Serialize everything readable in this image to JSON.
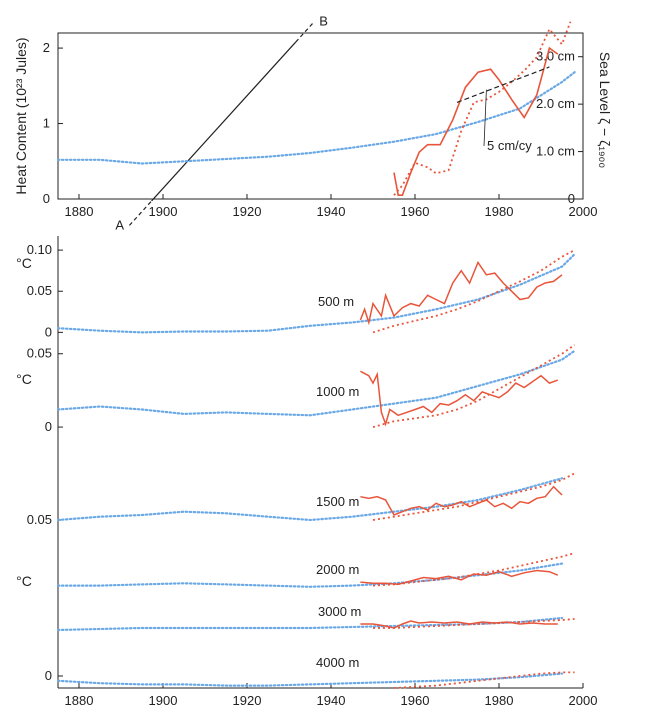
{
  "chart_data": {
    "type": "line",
    "colors": {
      "model": "#6aa8e6",
      "observed": "#e8553a",
      "axis": "#222222",
      "trend": "#222222"
    },
    "top_panel": {
      "xlim": [
        1875,
        2000
      ],
      "x_ticks": [
        "1880",
        "1900",
        "1920",
        "1940",
        "1960",
        "1980",
        "2000"
      ],
      "left_ylabel": "Heat Content (10²³ Jules)",
      "left_ylim": [
        0,
        2.2
      ],
      "left_ticks": [
        "0",
        "1",
        "2"
      ],
      "right_ylabel": "Sea Level ζ − ζ₁₉₀₀",
      "right_ylim": [
        0,
        3.5
      ],
      "right_ticks": [
        "0",
        "1.0 cm",
        "2.0 cm",
        "3.0 cm"
      ],
      "trend_line": {
        "points": [
          [
            1892,
            -0.35
          ],
          [
            1936,
            2.35
          ]
        ],
        "start_label": "A",
        "end_label": "B"
      },
      "annotation": "5 cm/cy",
      "series": [
        {
          "kind": "model_dotted",
          "x": [
            1875,
            1885,
            1895,
            1905,
            1915,
            1925,
            1935,
            1945,
            1955,
            1965,
            1975,
            1985,
            1995,
            1998
          ],
          "y": [
            0.52,
            0.52,
            0.47,
            0.5,
            0.53,
            0.56,
            0.61,
            0.68,
            0.76,
            0.86,
            1.02,
            1.2,
            1.55,
            1.68
          ]
        },
        {
          "kind": "observed_solid",
          "x": [
            1955,
            1956,
            1957,
            1959,
            1961,
            1963,
            1966,
            1969,
            1972,
            1975,
            1978,
            1980,
            1983,
            1986,
            1989,
            1992,
            1994
          ],
          "y": [
            0.35,
            0.05,
            0.05,
            0.35,
            0.62,
            0.72,
            0.72,
            1.05,
            1.48,
            1.68,
            1.72,
            1.58,
            1.32,
            1.08,
            1.38,
            2.0,
            1.92
          ]
        },
        {
          "kind": "observed_dotted",
          "x": [
            1955,
            1957,
            1960,
            1963,
            1965,
            1968,
            1971,
            1974,
            1977,
            1980,
            1983,
            1986,
            1989,
            1992,
            1995,
            1997
          ],
          "y": [
            0.05,
            0.18,
            0.48,
            0.42,
            0.34,
            0.38,
            0.9,
            1.28,
            1.32,
            1.42,
            1.55,
            1.7,
            1.88,
            2.25,
            2.05,
            2.35
          ]
        }
      ]
    },
    "bottom_panel": {
      "xlim": [
        1875,
        2000
      ],
      "x_ticks": [
        "1880",
        "1900",
        "1920",
        "1940",
        "1960",
        "1980",
        "2000"
      ],
      "ylabel": "°C",
      "depth_panels": [
        {
          "label": "500 m",
          "y_ticks": [
            {
              "v": 0,
              "t": "0"
            },
            {
              "v": 0.05,
              "t": "0.05"
            },
            {
              "v": 0.1,
              "t": "0.10"
            }
          ],
          "ylim": [
            -0.002,
            0.105
          ],
          "model_x": [
            1875,
            1885,
            1895,
            1905,
            1915,
            1925,
            1935,
            1945,
            1955,
            1965,
            1975,
            1985,
            1995,
            1998
          ],
          "model_y": [
            0.005,
            0.002,
            0,
            0.001,
            0.001,
            0.002,
            0.008,
            0.012,
            0.018,
            0.028,
            0.04,
            0.058,
            0.08,
            0.095
          ],
          "obs_x": [
            1947,
            1948,
            1949,
            1950,
            1952,
            1953,
            1955,
            1957,
            1959,
            1961,
            1963,
            1965,
            1967,
            1969,
            1971,
            1973,
            1975,
            1977,
            1979,
            1981,
            1983,
            1985,
            1987,
            1989,
            1991,
            1993,
            1995
          ],
          "obs_y": [
            0.015,
            0.028,
            0.012,
            0.035,
            0.02,
            0.045,
            0.02,
            0.03,
            0.035,
            0.032,
            0.045,
            0.04,
            0.035,
            0.06,
            0.075,
            0.06,
            0.085,
            0.07,
            0.072,
            0.06,
            0.05,
            0.04,
            0.042,
            0.055,
            0.06,
            0.062,
            0.07
          ],
          "obs2_x": [
            1950,
            1955,
            1960,
            1965,
            1970,
            1975,
            1980,
            1985,
            1990,
            1995,
            1998
          ],
          "obs2_y": [
            0.0,
            0.008,
            0.014,
            0.02,
            0.028,
            0.038,
            0.05,
            0.062,
            0.075,
            0.092,
            0.1
          ]
        },
        {
          "label": "1000 m",
          "y_ticks": [
            {
              "v": 0,
              "t": "0"
            },
            {
              "v": 0.05,
              "t": "0.05"
            }
          ],
          "ylim": [
            -0.002,
            0.058
          ],
          "model_x": [
            1875,
            1885,
            1895,
            1905,
            1915,
            1925,
            1935,
            1945,
            1955,
            1965,
            1975,
            1985,
            1995,
            1998
          ],
          "model_y": [
            0.012,
            0.014,
            0.012,
            0.009,
            0.01,
            0.009,
            0.008,
            0.012,
            0.016,
            0.02,
            0.028,
            0.036,
            0.046,
            0.052
          ],
          "obs_x": [
            1947,
            1949,
            1950,
            1951,
            1952,
            1953,
            1954,
            1956,
            1958,
            1960,
            1962,
            1964,
            1966,
            1968,
            1970,
            1972,
            1974,
            1976,
            1978,
            1980,
            1982,
            1984,
            1986,
            1988,
            1990,
            1992,
            1994
          ],
          "obs_y": [
            0.038,
            0.035,
            0.03,
            0.036,
            0.01,
            0.002,
            0.012,
            0.008,
            0.01,
            0.012,
            0.014,
            0.01,
            0.016,
            0.015,
            0.018,
            0.022,
            0.018,
            0.024,
            0.022,
            0.02,
            0.024,
            0.03,
            0.027,
            0.031,
            0.035,
            0.03,
            0.032
          ],
          "obs2_x": [
            1950,
            1955,
            1960,
            1965,
            1970,
            1975,
            1980,
            1985,
            1990,
            1995,
            1998
          ],
          "obs2_y": [
            0.0,
            0.004,
            0.006,
            0.008,
            0.012,
            0.018,
            0.026,
            0.034,
            0.042,
            0.05,
            0.056
          ]
        },
        {
          "label": "1500 m",
          "y_ticks": [
            {
              "v": 0.05,
              "t": "0.05"
            }
          ],
          "ylim": [
            0.035,
            0.08
          ],
          "model_x": [
            1875,
            1885,
            1895,
            1905,
            1915,
            1925,
            1935,
            1945,
            1955,
            1965,
            1975,
            1985,
            1995
          ],
          "model_y": [
            0.05,
            0.052,
            0.053,
            0.055,
            0.054,
            0.052,
            0.05,
            0.052,
            0.055,
            0.058,
            0.062,
            0.068,
            0.075
          ],
          "obs_x": [
            1947,
            1949,
            1951,
            1953,
            1955,
            1957,
            1959,
            1961,
            1963,
            1965,
            1967,
            1969,
            1971,
            1973,
            1975,
            1977,
            1979,
            1981,
            1983,
            1985,
            1987,
            1989,
            1991,
            1993,
            1995
          ],
          "obs_y": [
            0.064,
            0.063,
            0.064,
            0.062,
            0.053,
            0.055,
            0.057,
            0.058,
            0.056,
            0.06,
            0.058,
            0.059,
            0.061,
            0.058,
            0.06,
            0.062,
            0.058,
            0.06,
            0.057,
            0.061,
            0.06,
            0.063,
            0.064,
            0.07,
            0.065
          ],
          "obs2_x": [
            1950,
            1955,
            1960,
            1965,
            1970,
            1975,
            1980,
            1985,
            1990,
            1995,
            1998
          ],
          "obs2_y": [
            0.05,
            0.052,
            0.054,
            0.056,
            0.058,
            0.061,
            0.064,
            0.067,
            0.07,
            0.074,
            0.078
          ]
        },
        {
          "label": "2000 m",
          "y_ticks": [
            {
              "v": 0,
              "t": "°C"
            }
          ],
          "ylim": [
            -0.01,
            0.04
          ],
          "model_x": [
            1875,
            1885,
            1895,
            1905,
            1915,
            1925,
            1935,
            1945,
            1955,
            1965,
            1975,
            1985,
            1995
          ],
          "model_y": [
            0.005,
            0.005,
            0.006,
            0.007,
            0.006,
            0.005,
            0.004,
            0.005,
            0.007,
            0.01,
            0.014,
            0.018,
            0.024
          ],
          "obs_x": [
            1947,
            1950,
            1953,
            1956,
            1959,
            1962,
            1965,
            1968,
            1971,
            1974,
            1977,
            1980,
            1983,
            1986,
            1989,
            1992,
            1994
          ],
          "obs_y": [
            0.008,
            0.007,
            0.007,
            0.006,
            0.009,
            0.012,
            0.011,
            0.013,
            0.01,
            0.015,
            0.014,
            0.017,
            0.013,
            0.016,
            0.018,
            0.017,
            0.014
          ],
          "obs2_x": [
            1950,
            1955,
            1960,
            1965,
            1970,
            1975,
            1980,
            1985,
            1990,
            1995,
            1998
          ],
          "obs2_y": [
            0.005,
            0.006,
            0.008,
            0.01,
            0.012,
            0.015,
            0.018,
            0.022,
            0.026,
            0.03,
            0.033
          ]
        },
        {
          "label": "3000 m",
          "y_ticks": [],
          "ylim": [
            -0.01,
            0.03
          ],
          "model_x": [
            1875,
            1885,
            1895,
            1905,
            1915,
            1925,
            1935,
            1945,
            1955,
            1965,
            1975,
            1985,
            1995
          ],
          "model_y": [
            0.0,
            0.001,
            0.002,
            0.002,
            0.002,
            0.002,
            0.002,
            0.003,
            0.004,
            0.005,
            0.006,
            0.008,
            0.012
          ],
          "obs_x": [
            1947,
            1950,
            1953,
            1955,
            1957,
            1959,
            1961,
            1964,
            1967,
            1970,
            1973,
            1976,
            1979,
            1982,
            1985,
            1988,
            1991,
            1994
          ],
          "obs_y": [
            0.006,
            0.006,
            0.004,
            0.002,
            0.006,
            0.009,
            0.007,
            0.008,
            0.007,
            0.008,
            0.006,
            0.008,
            0.007,
            0.008,
            0.006,
            0.007,
            0.006,
            0.006
          ],
          "obs2_x": [
            1950,
            1955,
            1960,
            1965,
            1970,
            1975,
            1980,
            1985,
            1990,
            1995,
            1998
          ],
          "obs2_y": [
            0.002,
            0.002,
            0.003,
            0.004,
            0.005,
            0.006,
            0.007,
            0.008,
            0.009,
            0.01,
            0.011
          ]
        },
        {
          "label": "4000 m",
          "y_ticks": [
            {
              "v": 0,
              "t": "0"
            }
          ],
          "ylim": [
            -0.01,
            0.03
          ],
          "model_x": [
            1875,
            1885,
            1895,
            1905,
            1915,
            1925,
            1935,
            1945,
            1955,
            1965,
            1975,
            1985,
            1995
          ],
          "model_y": [
            -0.004,
            -0.006,
            -0.007,
            -0.007,
            -0.008,
            -0.008,
            -0.007,
            -0.006,
            -0.005,
            -0.004,
            -0.003,
            -0.001,
            0.002
          ],
          "obs_x": [],
          "obs_y": [],
          "obs2_x": [
            1955,
            1960,
            1965,
            1970,
            1975,
            1980,
            1985,
            1990,
            1995,
            1998
          ],
          "obs2_y": [
            -0.01,
            -0.009,
            -0.008,
            -0.006,
            -0.004,
            -0.002,
            0.0,
            0.002,
            0.003,
            0.003
          ]
        }
      ]
    }
  }
}
